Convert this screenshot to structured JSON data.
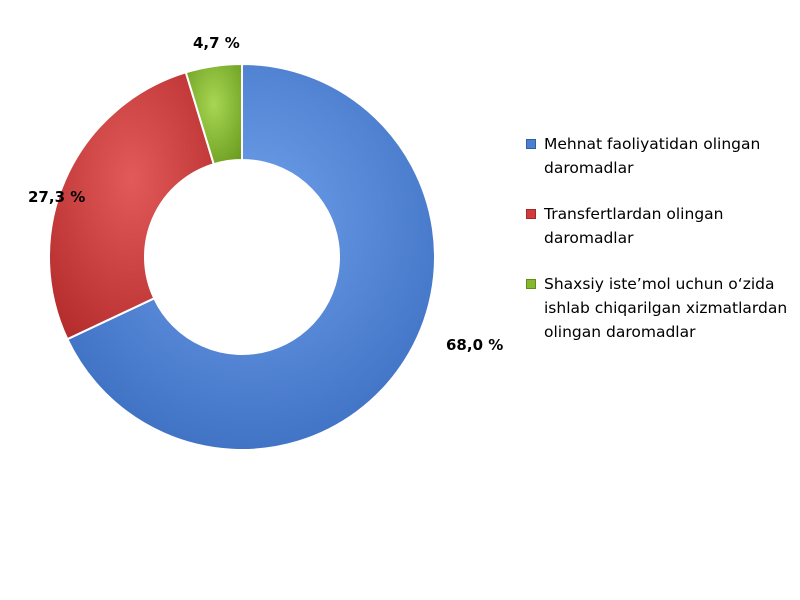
{
  "chart_data": {
    "type": "pie",
    "variant": "donut",
    "title": "",
    "series": [
      {
        "name": "Mehnat faoliyatidan olingan daromadlar",
        "value": 68.0,
        "label": "68,0 %",
        "color": "#4a7fd4"
      },
      {
        "name": "Transfertlardan olingan daromadlar",
        "value": 27.3,
        "label": "27,3 %",
        "color": "#d13b3b"
      },
      {
        "name": "Shaxsiy iste’mol uchun o‘zida ishlab chiqarilgan xizmatlardan olingan daromadlar",
        "value": 4.7,
        "label": "4,7 %",
        "color": "#86b82e"
      }
    ],
    "legend_position": "right"
  }
}
